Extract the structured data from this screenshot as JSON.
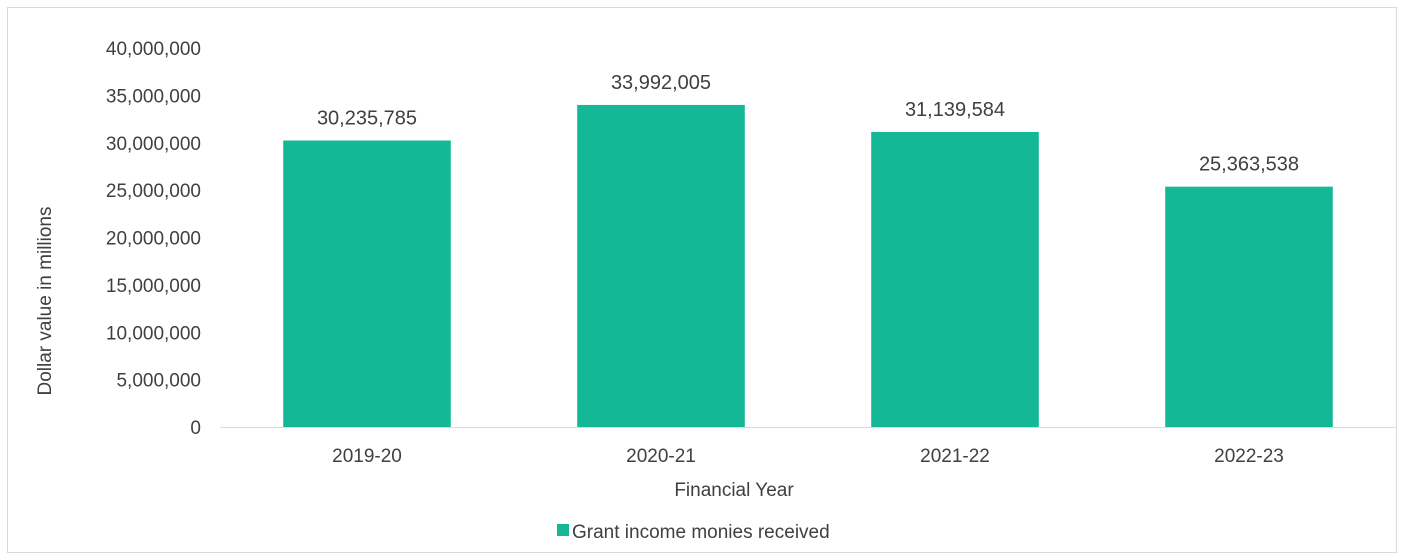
{
  "chart_data": {
    "type": "bar",
    "categories": [
      "2019-20",
      "2020-21",
      "2021-22",
      "2022-23"
    ],
    "series": [
      {
        "name": "Grant income monies received",
        "values": [
          30235785,
          33992005,
          31139584,
          25363538
        ],
        "labels": [
          "30,235,785",
          "33,992,005",
          "31,139,584",
          "25,363,538"
        ]
      }
    ],
    "xlabel": "Financial Year",
    "ylabel": "Dollar value in millions",
    "ylim": [
      0,
      40000000
    ],
    "yticks": [
      0,
      5000000,
      10000000,
      15000000,
      20000000,
      25000000,
      30000000,
      35000000,
      40000000
    ],
    "ytick_labels": [
      "0",
      "5,000,000",
      "10,000,000",
      "15,000,000",
      "20,000,000",
      "25,000,000",
      "30,000,000",
      "35,000,000",
      "40,000,000"
    ],
    "grid": false,
    "legend_position": "bottom",
    "bar_color": "#14b897"
  }
}
